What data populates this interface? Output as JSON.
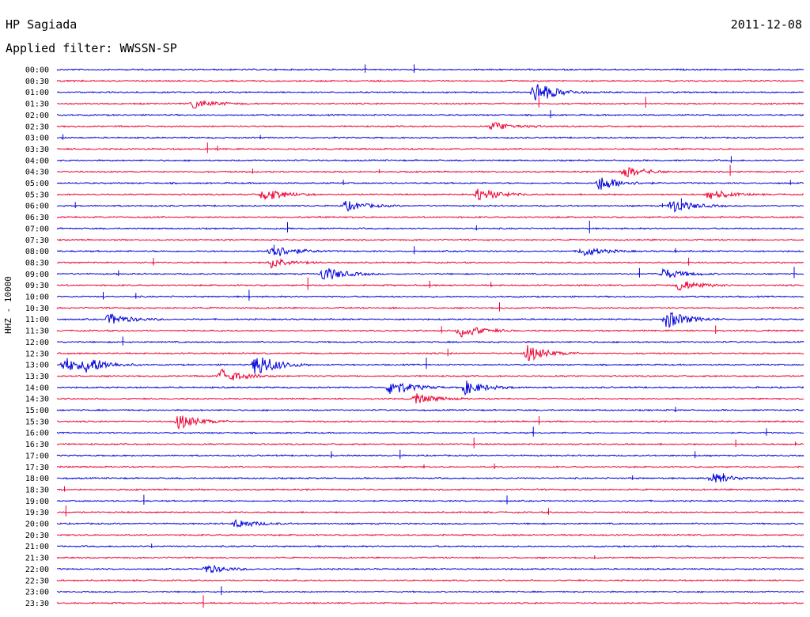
{
  "header": {
    "station": "HP Sagiada",
    "date": "2011-12-08",
    "filter": "Applied filter: WWSSN-SP",
    "channel": "HHZ - 10000"
  },
  "colors": {
    "even": "#0000dd",
    "odd": "#ee0033",
    "text": "#000000"
  },
  "chart_data": {
    "type": "line",
    "title": "HP Sagiada",
    "subtitle": "Applied filter: WWSSN-SP",
    "ylabel": "HHZ - 10000",
    "rows": [
      "00:00",
      "00:30",
      "01:00",
      "01:30",
      "02:00",
      "02:30",
      "03:00",
      "03:30",
      "04:00",
      "04:30",
      "05:00",
      "05:30",
      "06:00",
      "06:30",
      "07:00",
      "07:30",
      "08:00",
      "08:30",
      "09:00",
      "09:30",
      "10:00",
      "10:30",
      "11:00",
      "11:30",
      "12:00",
      "12:30",
      "13:00",
      "13:30",
      "14:00",
      "14:30",
      "15:00",
      "15:30",
      "16:00",
      "16:30",
      "17:00",
      "17:30",
      "18:00",
      "18:30",
      "19:00",
      "19:30",
      "20:00",
      "20:30",
      "21:00",
      "21:30",
      "22:00",
      "22:30",
      "23:00",
      "23:30"
    ],
    "row_span_minutes": 30,
    "colors_alternate": [
      "blue",
      "red"
    ],
    "grid": false,
    "events": [
      {
        "row": "01:00",
        "minute": 19.2,
        "amplitude": 0.9
      },
      {
        "row": "01:30",
        "minute": 5.5,
        "amplitude": 0.35
      },
      {
        "row": "02:30",
        "minute": 17.5,
        "amplitude": 0.35
      },
      {
        "row": "04:30",
        "minute": 22.8,
        "amplitude": 0.45
      },
      {
        "row": "05:00",
        "minute": 21.8,
        "amplitude": 0.6
      },
      {
        "row": "05:30",
        "minute": 8.3,
        "amplitude": 0.55
      },
      {
        "row": "05:30",
        "minute": 16.9,
        "amplitude": 0.6
      },
      {
        "row": "05:30",
        "minute": 26.2,
        "amplitude": 0.4
      },
      {
        "row": "06:00",
        "minute": 24.7,
        "amplitude": 0.55
      },
      {
        "row": "06:00",
        "minute": 11.6,
        "amplitude": 0.4
      },
      {
        "row": "08:00",
        "minute": 8.6,
        "amplitude": 0.6
      },
      {
        "row": "08:00",
        "minute": 21.1,
        "amplitude": 0.4
      },
      {
        "row": "08:30",
        "minute": 8.6,
        "amplitude": 0.45
      },
      {
        "row": "09:00",
        "minute": 10.7,
        "amplitude": 0.6
      },
      {
        "row": "09:00",
        "minute": 24.3,
        "amplitude": 0.45
      },
      {
        "row": "09:30",
        "minute": 25.0,
        "amplitude": 0.45
      },
      {
        "row": "11:00",
        "minute": 2.1,
        "amplitude": 0.45
      },
      {
        "row": "11:00",
        "minute": 24.5,
        "amplitude": 0.75
      },
      {
        "row": "11:30",
        "minute": 16.2,
        "amplitude": 0.55
      },
      {
        "row": "12:30",
        "minute": 18.9,
        "amplitude": 0.65
      },
      {
        "row": "13:00",
        "minute": 0.3,
        "amplitude": 0.6
      },
      {
        "row": "13:00",
        "minute": 1.2,
        "amplitude": 0.55
      },
      {
        "row": "13:00",
        "minute": 8.0,
        "amplitude": 1.0
      },
      {
        "row": "13:30",
        "minute": 6.6,
        "amplitude": 0.6
      },
      {
        "row": "14:00",
        "minute": 13.4,
        "amplitude": 0.7
      },
      {
        "row": "14:00",
        "minute": 16.4,
        "amplitude": 0.55
      },
      {
        "row": "14:30",
        "minute": 14.4,
        "amplitude": 0.4
      },
      {
        "row": "15:30",
        "minute": 4.9,
        "amplitude": 0.6
      },
      {
        "row": "18:00",
        "minute": 26.3,
        "amplitude": 0.4
      },
      {
        "row": "20:00",
        "minute": 7.2,
        "amplitude": 0.35
      },
      {
        "row": "22:00",
        "minute": 6.0,
        "amplitude": 0.35
      }
    ]
  }
}
